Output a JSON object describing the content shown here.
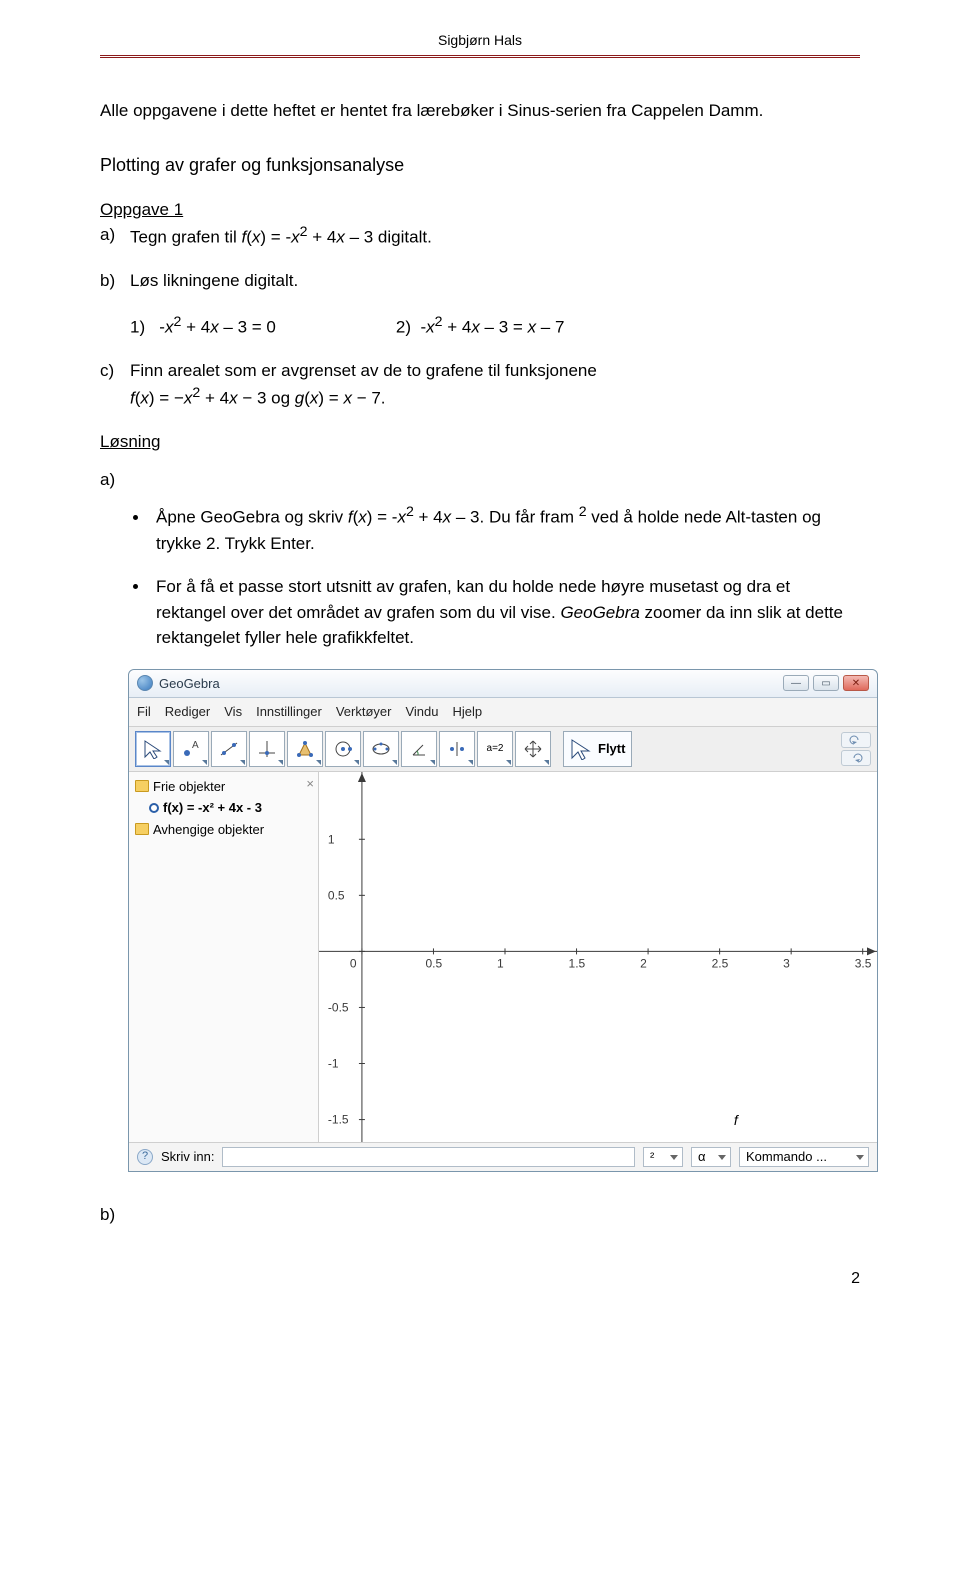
{
  "header": {
    "author": "Sigbjørn Hals"
  },
  "intro": "Alle oppgavene i dette heftet er hentet fra lærebøker i Sinus-serien fra Cappelen Damm.",
  "section_title": "Plotting av grafer og funksjonsanalyse",
  "oppgave_label": "Oppgave 1",
  "task_a": {
    "label": "a)",
    "text": "Tegn grafen til f(x) = -x² + 4x – 3 digitalt."
  },
  "task_b": {
    "label": "b)",
    "text": "Løs likningene digitalt."
  },
  "sub1": {
    "num": "1)",
    "eq": "-x² + 4x – 3 = 0"
  },
  "sub2": {
    "num": "2)",
    "eq": "-x² + 4x – 3 = x – 7"
  },
  "task_c": {
    "label": "c)",
    "line1": "Finn arealet som er avgrenset av de to grafene til funksjonene",
    "line2": "f(x) = −x² + 4x − 3 og g(x) = x − 7."
  },
  "losning": "Løsning",
  "a_label": "a)",
  "bullets": {
    "b1": "Åpne GeoGebra og skriv f(x) = -x² + 4x – 3. Du får fram ² ved å holde nede Alt-tasten og trykke 2. Trykk Enter.",
    "b2": "For å få et passe stort utsnitt av grafen, kan du holde nede høyre musetast og dra et rektangel over det området av grafen som du vil vise. GeoGebra zoomer da inn slik at dette rektangelet fyller hele grafikkfeltet."
  },
  "gg": {
    "title": "GeoGebra",
    "menus": [
      "Fil",
      "Rediger",
      "Vis",
      "Innstillinger",
      "Verktøyer",
      "Vindu",
      "Hjelp"
    ],
    "move_label": "Flytt",
    "a2": "a=2",
    "side": {
      "frie": "Frie objekter",
      "fx": "f(x) = -x² + 4x - 3",
      "avh": "Avhengige objekter"
    },
    "plot": {
      "xlim": [
        -0.3,
        3.6
      ],
      "ylim": [
        -1.7,
        1.6
      ],
      "xticks": [
        0,
        0.5,
        1,
        1.5,
        2,
        2.5,
        3,
        3.5
      ],
      "yticks": [
        -1.5,
        -1,
        -0.5,
        0,
        0.5,
        1
      ],
      "curve_label": "f",
      "axis_color": "#3a3a3a",
      "tick_color": "#3a3a3a",
      "curve_color": "#000000",
      "curve_width": 2.5
    },
    "input": {
      "label": "Skriv inn:",
      "power": "²",
      "alpha": "α",
      "cmd": "Kommando ..."
    }
  },
  "b_bottom": "b)",
  "page_number": "2"
}
